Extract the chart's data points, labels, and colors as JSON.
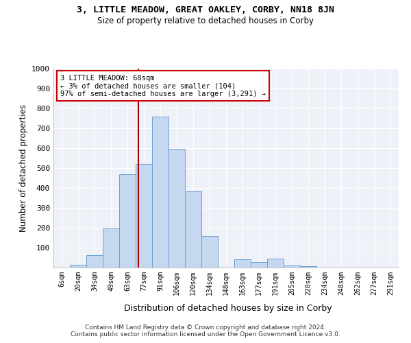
{
  "title1": "3, LITTLE MEADOW, GREAT OAKLEY, CORBY, NN18 8JN",
  "title2": "Size of property relative to detached houses in Corby",
  "xlabel": "Distribution of detached houses by size in Corby",
  "ylabel": "Number of detached properties",
  "categories": [
    "6sqm",
    "20sqm",
    "34sqm",
    "49sqm",
    "63sqm",
    "77sqm",
    "91sqm",
    "106sqm",
    "120sqm",
    "134sqm",
    "148sqm",
    "163sqm",
    "177sqm",
    "191sqm",
    "205sqm",
    "220sqm",
    "234sqm",
    "248sqm",
    "262sqm",
    "277sqm",
    "291sqm"
  ],
  "values": [
    0,
    14,
    62,
    198,
    470,
    520,
    760,
    597,
    383,
    160,
    0,
    40,
    27,
    44,
    11,
    7,
    0,
    0,
    0,
    0,
    0
  ],
  "bar_color": "#c5d8ef",
  "bar_edge_color": "#6a9fd8",
  "grid_color": "#dde6f0",
  "annotation_text": "3 LITTLE MEADOW: 68sqm\n← 3% of detached houses are smaller (104)\n97% of semi-detached houses are larger (3,291) →",
  "annotation_box_color": "#ffffff",
  "annotation_box_edge": "#cc0000",
  "vline_x": 4.65,
  "vline_color": "#aa0000",
  "footer1": "Contains HM Land Registry data © Crown copyright and database right 2024.",
  "footer2": "Contains public sector information licensed under the Open Government Licence v3.0.",
  "ylim": [
    0,
    1000
  ],
  "yticks": [
    0,
    100,
    200,
    300,
    400,
    500,
    600,
    700,
    800,
    900,
    1000
  ],
  "bg_color": "#eef2f8"
}
